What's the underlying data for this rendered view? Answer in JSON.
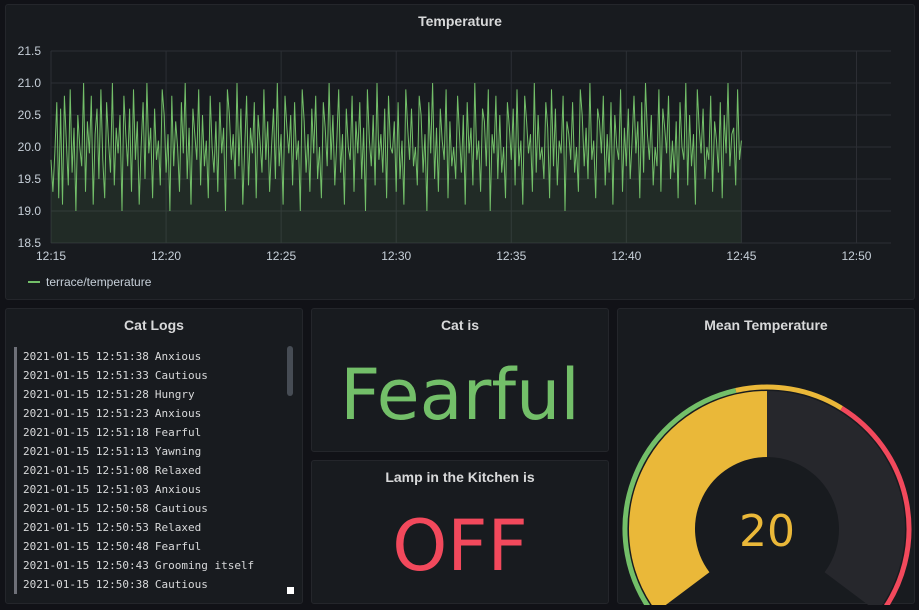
{
  "colors": {
    "background": "#111217",
    "panel": "#181b1f",
    "green": "#73bf69",
    "yellow": "#eab839",
    "red": "#f2495c",
    "gauge_track": "#26272c"
  },
  "panels": {
    "temperature": {
      "title": "Temperature",
      "legend": "terrace/temperature"
    },
    "cat_logs": {
      "title": "Cat Logs",
      "rows": [
        {
          "time": "2021-01-15 12:51:38",
          "text": "Anxious"
        },
        {
          "time": "2021-01-15 12:51:33",
          "text": "Cautious"
        },
        {
          "time": "2021-01-15 12:51:28",
          "text": "Hungry"
        },
        {
          "time": "2021-01-15 12:51:23",
          "text": "Anxious"
        },
        {
          "time": "2021-01-15 12:51:18",
          "text": "Fearful"
        },
        {
          "time": "2021-01-15 12:51:13",
          "text": "Yawning"
        },
        {
          "time": "2021-01-15 12:51:08",
          "text": "Relaxed"
        },
        {
          "time": "2021-01-15 12:51:03",
          "text": "Anxious"
        },
        {
          "time": "2021-01-15 12:50:58",
          "text": "Cautious"
        },
        {
          "time": "2021-01-15 12:50:53",
          "text": "Relaxed"
        },
        {
          "time": "2021-01-15 12:50:48",
          "text": "Fearful"
        },
        {
          "time": "2021-01-15 12:50:43",
          "text": "Grooming itself"
        },
        {
          "time": "2021-01-15 12:50:38",
          "text": "Cautious"
        }
      ]
    },
    "cat_is": {
      "title": "Cat is",
      "value": "Fearful",
      "color": "#73bf69"
    },
    "lamp": {
      "title": "Lamp in the Kitchen is",
      "value": "OFF",
      "color": "#f2495c"
    },
    "mean_temperature": {
      "title": "Mean Temperature",
      "value": 20,
      "display_value": "20",
      "min": 0,
      "max": 40,
      "thresholds": [
        {
          "from": 0,
          "to": 18,
          "color": "#73bf69"
        },
        {
          "from": 18,
          "to": 25,
          "color": "#eab839"
        },
        {
          "from": 25,
          "to": 40,
          "color": "#f2495c"
        }
      ]
    }
  },
  "chart_data": {
    "type": "line",
    "title": "Temperature",
    "x_tick_labels": [
      "12:15",
      "12:20",
      "12:25",
      "12:30",
      "12:35",
      "12:40",
      "12:45",
      "12:50"
    ],
    "x_range_minutes": [
      0,
      36.5
    ],
    "ylim": [
      18.5,
      21.5
    ],
    "y_ticks": [
      18.5,
      19.0,
      19.5,
      20.0,
      20.5,
      21.0,
      21.5
    ],
    "grid": true,
    "legend_position": "bottom-left",
    "series": [
      {
        "name": "terrace/temperature",
        "color": "#73bf69",
        "interval_seconds": 5,
        "values": [
          19.8,
          19.3,
          19.9,
          20.7,
          19.2,
          20.6,
          19.1,
          20.8,
          20.1,
          19.4,
          20.9,
          19.6,
          20.3,
          19.0,
          20.5,
          20.0,
          19.7,
          21.0,
          19.3,
          20.4,
          19.9,
          20.8,
          19.1,
          20.2,
          20.6,
          19.5,
          20.9,
          19.8,
          19.2,
          20.7,
          20.1,
          19.6,
          21.0,
          19.4,
          20.3,
          19.9,
          20.5,
          19.0,
          20.8,
          20.2,
          19.7,
          20.6,
          19.3,
          20.9,
          19.8,
          20.4,
          19.1,
          20.0,
          20.7,
          19.5,
          21.0,
          19.9,
          20.3,
          19.2,
          20.6,
          19.8,
          20.1,
          19.4,
          20.9,
          20.5,
          19.6,
          20.2,
          19.0,
          20.8,
          19.7,
          20.4,
          20.0,
          19.3,
          20.7,
          19.9,
          21.0,
          19.5,
          20.3,
          19.1,
          20.6,
          20.2,
          19.8,
          20.9,
          19.4,
          20.5,
          19.7,
          20.1,
          19.2,
          20.8,
          20.0,
          19.6,
          20.4,
          19.3,
          20.7,
          19.9,
          20.3,
          19.0,
          20.9,
          20.5,
          19.8,
          20.2,
          19.5,
          21.0,
          19.7,
          20.6,
          19.1,
          20.0,
          20.8,
          19.4,
          20.3,
          19.9,
          20.7,
          19.2,
          20.5,
          20.1,
          19.6,
          20.9,
          19.8,
          20.4,
          19.3,
          20.0,
          20.6,
          19.5,
          21.0,
          19.7,
          20.2,
          19.1,
          20.8,
          20.3,
          19.9,
          20.5,
          19.4,
          20.7,
          19.8,
          20.1,
          19.0,
          20.9,
          20.4,
          19.6,
          20.2,
          19.3,
          20.6,
          19.9,
          20.8,
          19.5,
          20.0,
          19.2,
          20.7,
          20.3,
          19.7,
          21.0,
          19.8,
          20.5,
          19.4,
          20.1,
          20.9,
          19.6,
          20.2,
          19.1,
          20.6,
          20.0,
          19.8,
          20.8,
          19.3,
          20.4,
          19.9,
          20.7,
          19.5,
          20.3,
          19.0,
          20.9,
          20.1,
          19.7,
          20.5,
          19.4,
          21.0,
          19.8,
          20.2,
          19.6,
          20.6,
          19.2,
          20.8,
          20.0,
          19.9,
          20.4,
          19.3,
          20.7,
          19.5,
          20.1,
          19.1,
          20.9,
          20.3,
          19.8,
          20.6,
          19.7,
          20.0,
          19.4,
          20.8,
          20.5,
          19.6,
          20.2,
          19.0,
          20.7,
          19.9,
          21.0,
          19.5,
          20.3,
          19.3,
          20.6,
          20.1,
          19.8,
          20.9,
          19.2,
          20.4,
          19.7,
          20.0,
          19.5,
          20.8,
          20.2,
          19.6,
          20.5,
          19.1,
          20.7,
          19.9,
          20.3,
          19.4,
          21.0,
          19.8,
          20.1,
          19.3,
          20.6,
          20.4,
          19.7,
          20.9,
          19.0,
          20.2,
          19.9,
          20.8,
          19.5,
          20.5,
          19.6,
          20.0,
          19.2,
          20.7,
          20.3,
          19.8,
          20.6,
          19.4,
          20.9,
          19.7,
          20.1,
          19.1,
          20.8,
          20.4,
          19.9,
          20.2,
          19.3,
          21.0,
          19.6,
          20.5,
          19.8,
          20.0,
          19.5,
          20.7,
          20.3,
          19.2,
          20.9,
          19.7,
          20.6,
          19.4,
          20.1,
          19.9,
          20.8,
          19.0,
          20.4,
          20.2,
          19.8,
          20.7,
          19.6,
          20.0,
          19.3,
          20.9,
          20.5,
          19.7,
          20.3,
          19.5,
          21.0,
          19.8,
          20.1,
          19.2,
          20.6,
          20.4,
          19.9,
          20.8,
          19.4,
          20.2,
          19.6,
          20.7,
          19.1,
          20.5,
          20.0,
          19.8,
          20.9,
          19.3,
          20.3,
          19.7,
          20.6,
          19.5,
          20.1,
          20.8,
          19.9,
          20.4,
          19.2,
          20.7,
          19.6,
          21.0,
          20.2,
          19.8,
          20.5,
          19.4,
          20.0,
          19.7,
          20.9,
          19.3,
          20.6,
          20.3,
          19.9,
          20.8,
          19.5,
          20.1,
          19.6,
          20.4,
          19.2,
          20.7,
          20.0,
          19.8,
          21.0,
          19.4,
          20.5,
          19.7,
          20.2,
          19.1,
          20.9,
          20.3,
          19.9,
          20.6,
          19.5,
          20.0,
          19.8,
          20.8,
          19.3,
          20.4,
          20.1,
          19.6,
          20.7,
          19.2,
          20.5,
          19.9,
          21.0,
          19.7,
          20.2,
          20.3,
          19.4,
          20.9,
          19.8,
          20.1
        ]
      }
    ]
  }
}
